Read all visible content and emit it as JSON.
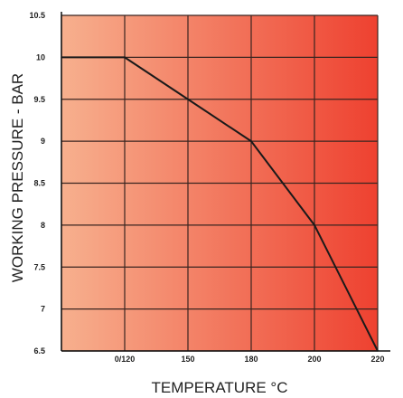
{
  "chart_data": {
    "type": "line",
    "title": "",
    "xlabel": "TEMPERATURE °C",
    "ylabel": "WORKING PRESSURE - BAR",
    "x_tick_labels": [
      "",
      "0/120",
      "150",
      "180",
      "200",
      "220"
    ],
    "y_ticks": [
      6.5,
      7,
      7.5,
      8,
      8.5,
      9,
      9.5,
      10,
      10.5
    ],
    "y_tick_labels": [
      "6.5",
      "7",
      "7.5",
      "8",
      "8.5",
      "9",
      "9.5",
      "10",
      "10.5"
    ],
    "ylim": [
      6.5,
      10.5
    ],
    "grid": true,
    "legend": "none",
    "series": [
      {
        "x": [
          "",
          "0/120",
          "150",
          "180",
          "200",
          "220"
        ],
        "values": [
          10,
          10,
          9.5,
          9,
          8,
          6.5
        ]
      }
    ]
  },
  "colors": {
    "gradient_left": "#f7b08e",
    "gradient_right": "#ee4130",
    "grid": "#3a2520",
    "line": "#1a1a1a"
  }
}
